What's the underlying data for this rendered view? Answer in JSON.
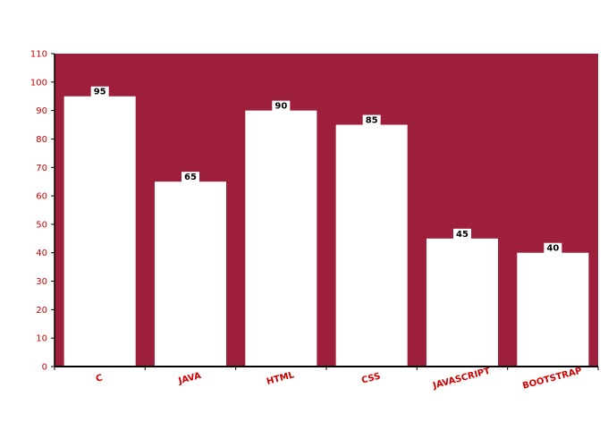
{
  "chart_data": {
    "type": "bar",
    "categories": [
      "C",
      "JAVA",
      "HTML",
      "CSS",
      "JAVASCRIPT",
      "BOOTSTRAP"
    ],
    "values": [
      95,
      65,
      90,
      85,
      45,
      40
    ],
    "title": "",
    "xlabel": "",
    "ylabel": "",
    "ylim": [
      0,
      110
    ],
    "yticks": [
      0,
      10,
      20,
      30,
      40,
      50,
      60,
      70,
      80,
      90,
      100,
      110
    ],
    "grid": false,
    "legend": "none",
    "data_labels": true
  },
  "colors": {
    "plot_background": "#9e1f3c",
    "bar_fill": "#ffffff",
    "axis_text": "#d00000",
    "axis_line": "#000000",
    "label_box": "#ffffff",
    "label_text": "#000000"
  }
}
